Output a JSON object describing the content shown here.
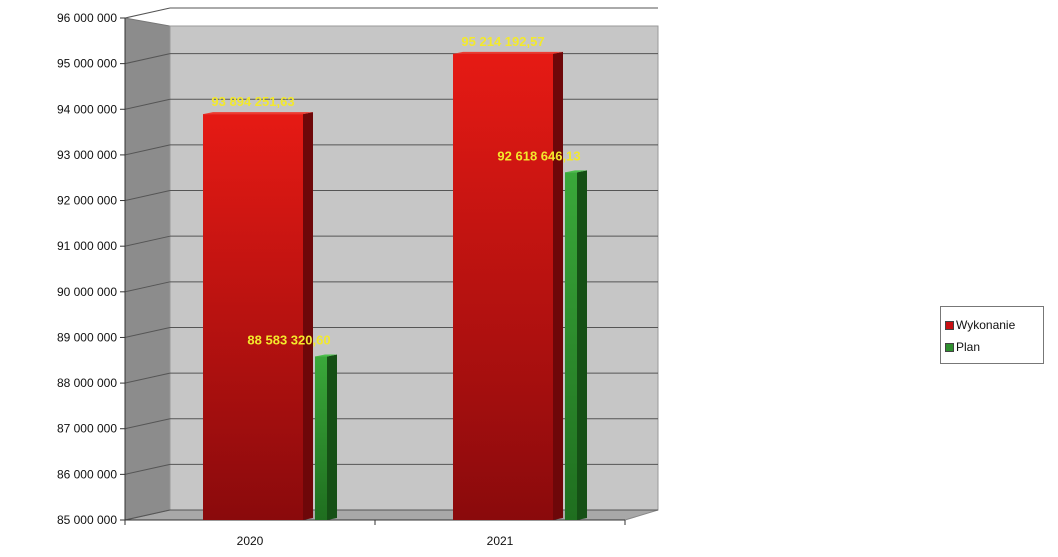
{
  "chart_data": {
    "type": "bar",
    "categories": [
      "2020",
      "2021"
    ],
    "series": [
      {
        "name": "Wykonanie",
        "values": [
          93894251.63,
          95214192.57
        ],
        "labels": [
          "93 894 251,63",
          "95 214 192,57"
        ],
        "color": "#c80f12"
      },
      {
        "name": "Plan",
        "values": [
          88583320.6,
          92618646.13
        ],
        "labels": [
          "88 583 320,60",
          "92 618 646,13"
        ],
        "color": "#2e8f2e"
      }
    ],
    "ylim": [
      85000000,
      96000000
    ],
    "y_ticks": [
      {
        "value": 85000000,
        "label": "85 000 000"
      },
      {
        "value": 86000000,
        "label": "86 000 000"
      },
      {
        "value": 87000000,
        "label": "87 000 000"
      },
      {
        "value": 88000000,
        "label": "88 000 000"
      },
      {
        "value": 89000000,
        "label": "89 000 000"
      },
      {
        "value": 90000000,
        "label": "90 000 000"
      },
      {
        "value": 91000000,
        "label": "91 000 000"
      },
      {
        "value": 92000000,
        "label": "92 000 000"
      },
      {
        "value": 93000000,
        "label": "93 000 000"
      },
      {
        "value": 94000000,
        "label": "94 000 000"
      },
      {
        "value": 95000000,
        "label": "95 000 000"
      },
      {
        "value": 96000000,
        "label": "96 000 000"
      }
    ],
    "title": "",
    "xlabel": "",
    "ylabel": "",
    "grid": true,
    "legend_position": "right",
    "style": "3d-column"
  }
}
